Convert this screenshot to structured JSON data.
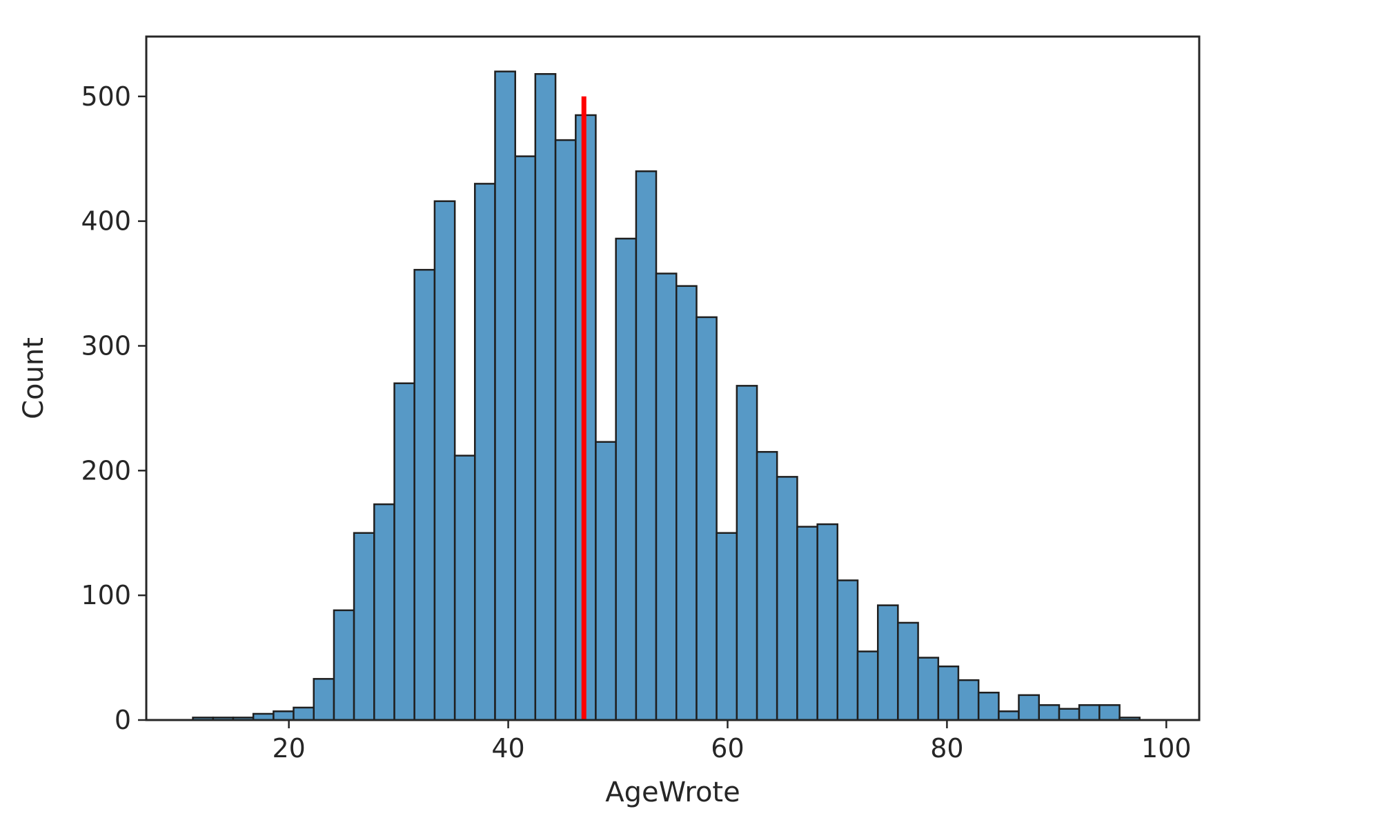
{
  "chart_data": {
    "type": "bar",
    "xlabel": "AgeWrote",
    "ylabel": "Count",
    "xlim": [
      7,
      103
    ],
    "ylim": [
      0,
      548
    ],
    "x_ticks": [
      20,
      40,
      60,
      80,
      100
    ],
    "y_ticks": [
      0,
      100,
      200,
      300,
      400,
      500
    ],
    "grid": false,
    "bin_edges": [
      11.25,
      13.09,
      14.92,
      16.76,
      18.6,
      20.43,
      22.27,
      24.11,
      25.94,
      27.78,
      29.62,
      31.45,
      33.29,
      35.13,
      36.96,
      38.8,
      40.64,
      42.47,
      44.31,
      46.15,
      47.98,
      49.82,
      51.66,
      53.49,
      55.33,
      57.17,
      59.0,
      60.84,
      62.68,
      64.51,
      66.35,
      68.19,
      70.02,
      71.86,
      73.7,
      75.53,
      77.37,
      79.21,
      81.04,
      82.88,
      84.72,
      86.55,
      88.39,
      90.23,
      92.06,
      93.9,
      95.74,
      97.57
    ],
    "counts": [
      2,
      2,
      2,
      5,
      7,
      10,
      33,
      88,
      150,
      173,
      270,
      361,
      416,
      212,
      430,
      520,
      452,
      518,
      465,
      485,
      223,
      386,
      440,
      358,
      348,
      323,
      150,
      268,
      215,
      195,
      155,
      157,
      112,
      55,
      92,
      78,
      50,
      43,
      32,
      22,
      7,
      20,
      12,
      9,
      12,
      12,
      2
    ],
    "vline": {
      "x": 46.9,
      "ymin": 0,
      "ymax": 500,
      "color": "#ff0000"
    },
    "colors": {
      "bar_fill": "#5799c6",
      "bar_edge": "#1f1f1f",
      "axis": "#262626"
    }
  }
}
